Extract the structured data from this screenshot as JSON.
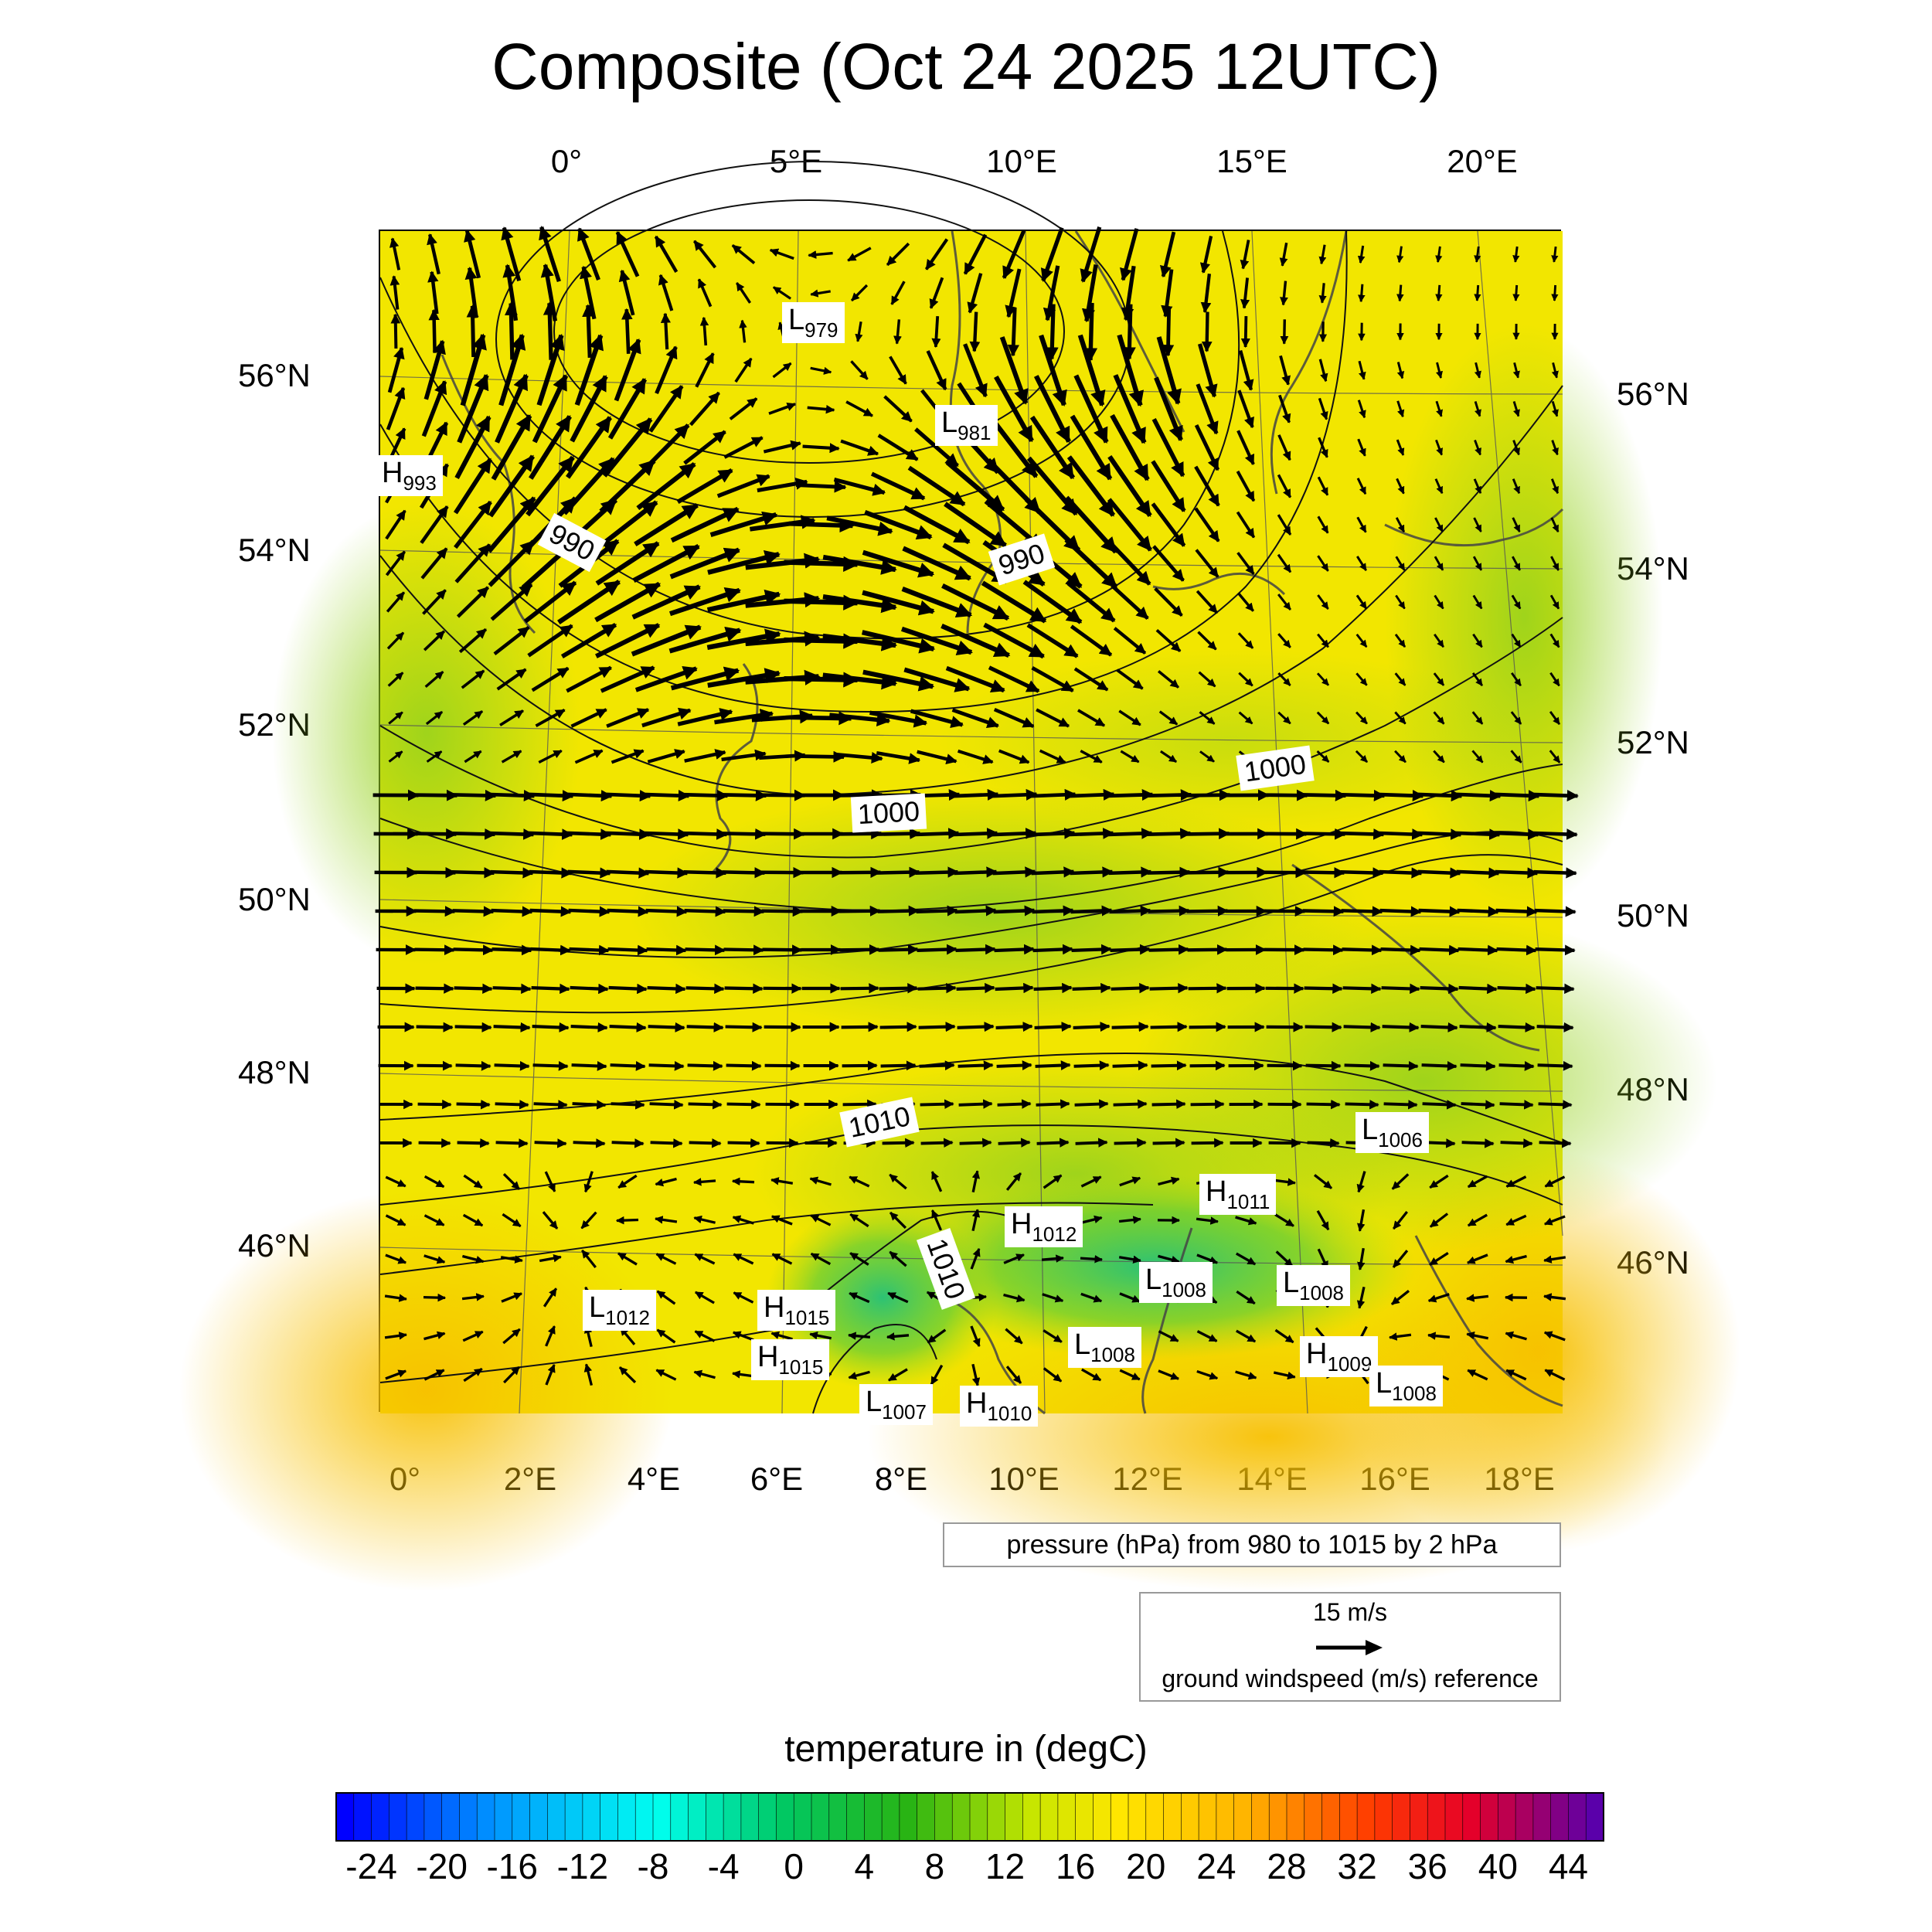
{
  "title": "Composite (Oct 24 2025 12UTC)",
  "axes": {
    "top_lon": [
      "0°",
      "5°E",
      "10°E",
      "15°E",
      "20°E"
    ],
    "bottom_lon": [
      "0°",
      "2°E",
      "4°E",
      "6°E",
      "8°E",
      "10°E",
      "12°E",
      "14°E",
      "16°E",
      "18°E"
    ],
    "left_lat": [
      "56°N",
      "54°N",
      "52°N",
      "50°N",
      "48°N",
      "46°N"
    ],
    "right_lat": [
      "56°N",
      "54°N",
      "52°N",
      "50°N",
      "48°N",
      "46°N"
    ]
  },
  "pressure_centers": [
    {
      "type": "L",
      "value": "979"
    },
    {
      "type": "L",
      "value": "981"
    },
    {
      "type": "H",
      "value": "993"
    },
    {
      "type": "L",
      "value": "1006"
    },
    {
      "type": "H",
      "value": "1011"
    },
    {
      "type": "H",
      "value": "1012"
    },
    {
      "type": "L",
      "value": "1008"
    },
    {
      "type": "L",
      "value": "1008"
    },
    {
      "type": "L",
      "value": "1012"
    },
    {
      "type": "H",
      "value": "1015"
    },
    {
      "type": "H",
      "value": "1015"
    },
    {
      "type": "L",
      "value": "1008"
    },
    {
      "type": "H",
      "value": "1009"
    },
    {
      "type": "L",
      "value": "1008"
    },
    {
      "type": "L",
      "value": "1007"
    },
    {
      "type": "H",
      "value": "1010"
    }
  ],
  "contour_labels": [
    "990",
    "990",
    "1000",
    "1000",
    "1010",
    "1010"
  ],
  "pressure_legend": "pressure (hPa) from 980 to 1015 by 2 hPa",
  "wind_reference": {
    "value": "15 m/s",
    "description": "ground windspeed (m/s) reference"
  },
  "colorbar": {
    "title": "temperature in (degC)",
    "min": -26,
    "max": 46,
    "step": 2,
    "tick_labels": [
      "-24",
      "-20",
      "-16",
      "-12",
      "-8",
      "-4",
      "0",
      "4",
      "8",
      "12",
      "16",
      "20",
      "24",
      "28",
      "32",
      "36",
      "40",
      "44"
    ]
  },
  "colors": {
    "field_main": "#f2e600",
    "field_warm": "#f5c800",
    "field_cool": "#a8dc14"
  }
}
